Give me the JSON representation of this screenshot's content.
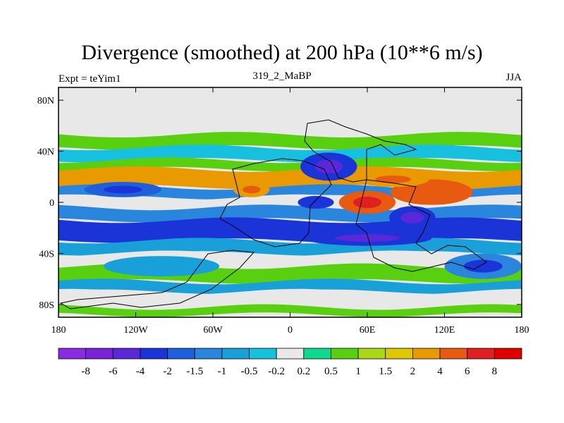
{
  "header": {
    "title": "Divergence (smoothed) at 200 hPa (10**6 m/s)",
    "left_label": "Expt = teYim1",
    "center_label": "319_2_MaBP",
    "right_label": "JJA"
  },
  "chart_data": {
    "type": "filled-contour map",
    "title": "Divergence (smoothed) at 200 hPa (10**6 m/s)",
    "projection": "cylindrical equidistant",
    "xlim": [
      -180,
      180
    ],
    "ylim": [
      -90,
      90
    ],
    "x_ticks": [
      {
        "value": -180,
        "label": "180"
      },
      {
        "value": -120,
        "label": "120W"
      },
      {
        "value": -60,
        "label": "60W"
      },
      {
        "value": 0,
        "label": "0"
      },
      {
        "value": 60,
        "label": "60E"
      },
      {
        "value": 120,
        "label": "120E"
      },
      {
        "value": 180,
        "label": "180"
      }
    ],
    "y_ticks": [
      {
        "value": 80,
        "label": "80N"
      },
      {
        "value": 40,
        "label": "40N"
      },
      {
        "value": 0,
        "label": "0"
      },
      {
        "value": -40,
        "label": "40S"
      },
      {
        "value": -80,
        "label": "80S"
      }
    ],
    "colorbar": {
      "levels": [
        "-8",
        "-6",
        "-4",
        "-2",
        "-1.5",
        "-1",
        "-0.5",
        "-0.2",
        "0.2",
        "0.5",
        "1",
        "1.5",
        "2",
        "4",
        "6",
        "8"
      ],
      "colors": [
        "#8a2be2",
        "#7a22d8",
        "#5a28d8",
        "#1a34d8",
        "#1e60dc",
        "#2a86dc",
        "#1aa0d8",
        "#18c0e0",
        "#e8e8e8",
        "#10d890",
        "#58d010",
        "#a8d818",
        "#e0c800",
        "#e89a00",
        "#e85a10",
        "#e02020",
        "#e00000"
      ]
    },
    "bands": [
      {
        "lat_top": 53,
        "lat_bottom": 43,
        "value": 0.6
      },
      {
        "lat_top": 43,
        "lat_bottom": 33,
        "value": -0.3
      },
      {
        "lat_top": 33,
        "lat_bottom": 26,
        "value": 0.8
      },
      {
        "lat_top": 26,
        "lat_bottom": 12,
        "value": 2.5
      },
      {
        "lat_top": 12,
        "lat_bottom": 4,
        "value": -1.2
      },
      {
        "lat_top": 4,
        "lat_bottom": -4,
        "value": 0.0
      },
      {
        "lat_top": -4,
        "lat_bottom": -14,
        "value": -1.2
      },
      {
        "lat_top": -14,
        "lat_bottom": -30,
        "value": -2.2
      },
      {
        "lat_top": -30,
        "lat_bottom": -40,
        "value": -0.8
      },
      {
        "lat_top": -40,
        "lat_bottom": -50,
        "value": 0.1
      },
      {
        "lat_top": -50,
        "lat_bottom": -62,
        "value": 0.7
      },
      {
        "lat_top": -62,
        "lat_bottom": -70,
        "value": -0.7
      },
      {
        "lat_top": -70,
        "lat_bottom": -82,
        "value": 0.0
      },
      {
        "lat_top": -82,
        "lat_bottom": -88,
        "value": 0.8
      }
    ],
    "features": [
      {
        "lon": 60,
        "lat": 0,
        "rx": 22,
        "ry": 9,
        "value": 5
      },
      {
        "lon": 110,
        "lat": 8,
        "rx": 32,
        "ry": 10,
        "value": 4
      },
      {
        "lon": 80,
        "lat": 18,
        "rx": 28,
        "ry": 6,
        "value": 3
      },
      {
        "lon": -30,
        "lat": 10,
        "rx": 14,
        "ry": 6,
        "value": 3
      },
      {
        "lon": 30,
        "lat": 28,
        "rx": 22,
        "ry": 11,
        "value": -3
      },
      {
        "lon": 20,
        "lat": 0,
        "rx": 14,
        "ry": 5,
        "value": -2.5
      },
      {
        "lon": 95,
        "lat": -12,
        "rx": 18,
        "ry": 9,
        "value": -4
      },
      {
        "lon": 60,
        "lat": -28,
        "rx": 50,
        "ry": 6,
        "value": -3
      },
      {
        "lon": -130,
        "lat": 10,
        "rx": 30,
        "ry": 6,
        "value": -1.8
      },
      {
        "lon": 150,
        "lat": -50,
        "rx": 30,
        "ry": 10,
        "value": -1.5
      },
      {
        "lon": -100,
        "lat": -50,
        "rx": 45,
        "ry": 8,
        "value": -0.6
      }
    ]
  }
}
